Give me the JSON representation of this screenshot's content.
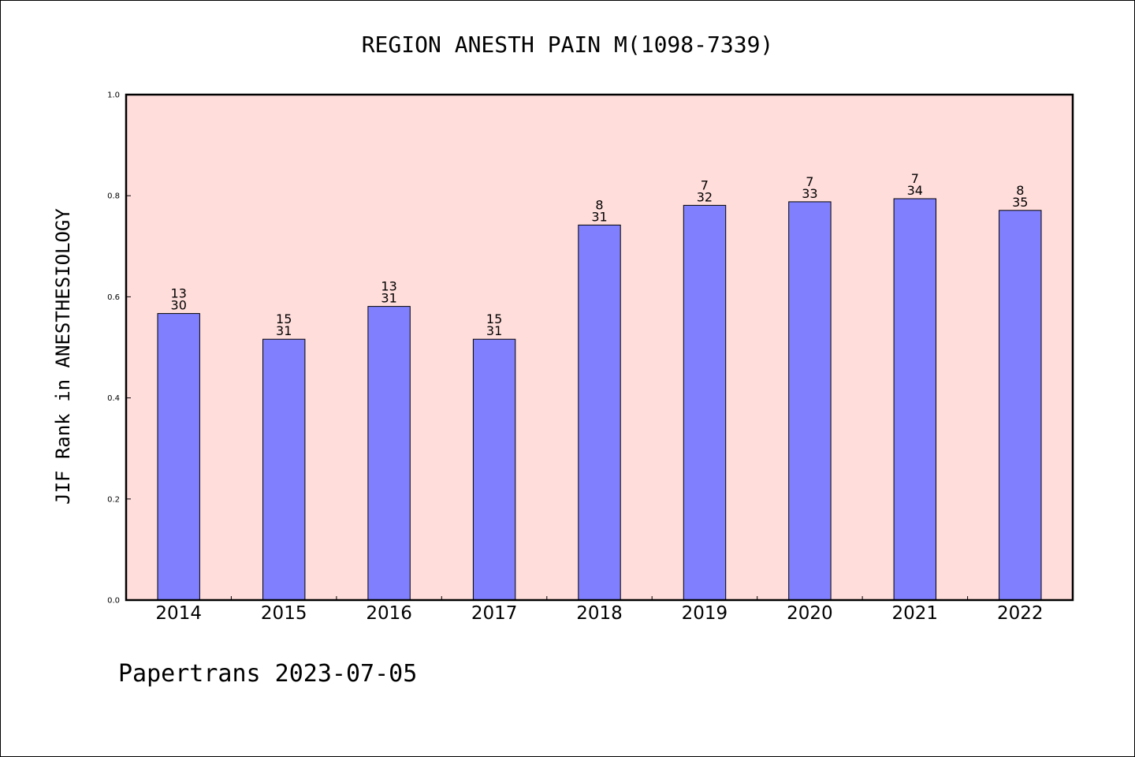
{
  "chart_data": {
    "type": "bar",
    "title": "REGION ANESTH PAIN M(1098-7339)",
    "xlabel": "",
    "ylabel": "JIF Rank in ANESTHESIOLOGY",
    "ylim": [
      0.0,
      1.0
    ],
    "yticks": [
      "0.0",
      "0.2",
      "0.4",
      "0.6",
      "0.8",
      "1.0"
    ],
    "grid": false,
    "categories": [
      "2014",
      "2015",
      "2016",
      "2017",
      "2018",
      "2019",
      "2020",
      "2021",
      "2022"
    ],
    "values": [
      0.567,
      0.516,
      0.581,
      0.516,
      0.742,
      0.781,
      0.788,
      0.794,
      0.771
    ],
    "rank": [
      "13",
      "15",
      "13",
      "15",
      "8",
      "7",
      "7",
      "7",
      "8"
    ],
    "total": [
      "30",
      "31",
      "31",
      "31",
      "31",
      "32",
      "33",
      "34",
      "35"
    ],
    "colors": {
      "bar": "#8080ff",
      "plot_bg": "#ffdddb",
      "edge": "#000000"
    }
  },
  "footer": "Papertrans 2023-07-05"
}
